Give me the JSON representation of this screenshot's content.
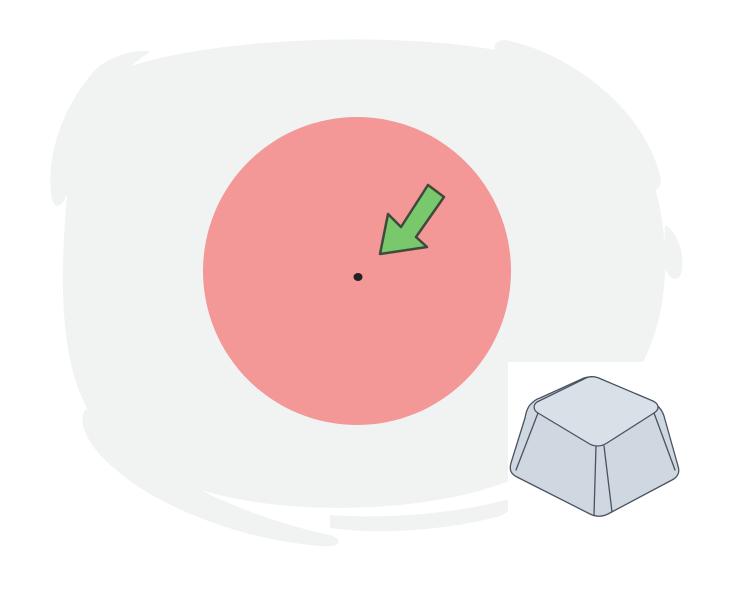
{
  "illustration": {
    "subject": "pointer-arrow-targeting-dot-with-keyboard-key",
    "colors": {
      "background": "#ffffff",
      "blob": "#f1f3f3",
      "target_circle": "#f39797",
      "dot": "#222222",
      "arrow_fill": "#79c86b",
      "arrow_stroke": "#3e4a3c",
      "key_fill": "#cfd8e0",
      "key_top": "#d9e1e8",
      "key_stroke": "#4a5260"
    },
    "icons": {
      "arrow": "arrow-pointer-icon",
      "key": "keyboard-key-icon",
      "dot": "target-dot-icon"
    }
  }
}
